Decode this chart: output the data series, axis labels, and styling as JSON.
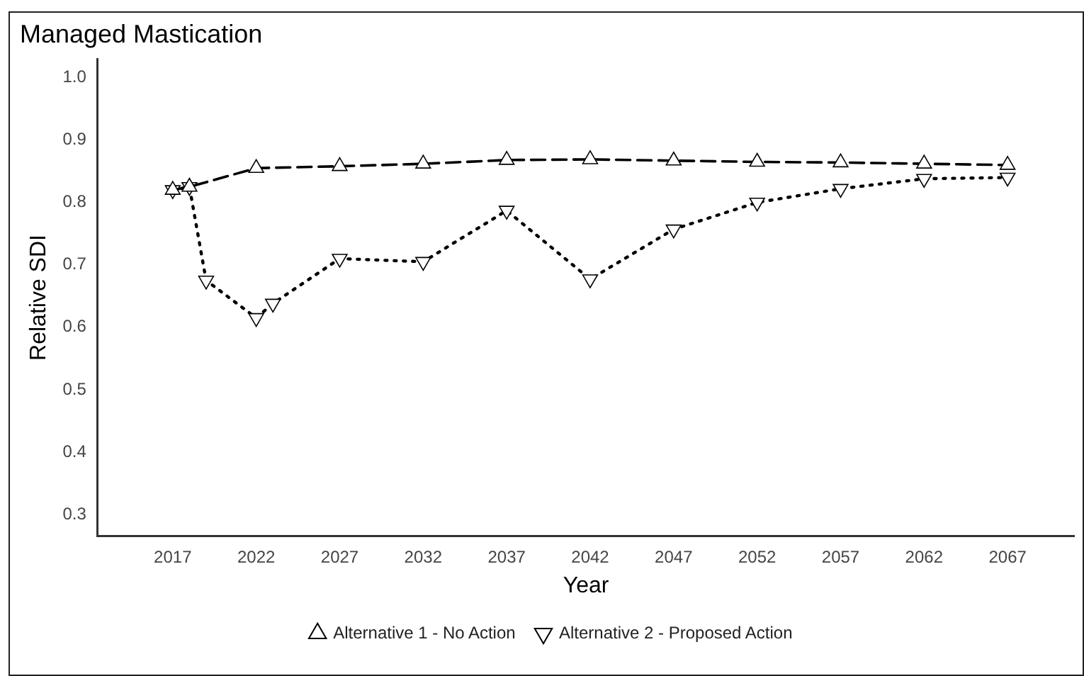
{
  "chart_data": {
    "type": "line",
    "title": "Managed Mastication",
    "xlabel": "Year",
    "ylabel": "Relative SDI",
    "xlim": [
      2012.5,
      2071
    ],
    "xticks": [
      2017,
      2022,
      2027,
      2032,
      2037,
      2042,
      2047,
      2052,
      2057,
      2062,
      2067
    ],
    "ylim": [
      0.265,
      1.03
    ],
    "yticks": [
      {
        "value": 0.3,
        "label": "0.3"
      },
      {
        "value": 0.4,
        "label": "0.4"
      },
      {
        "value": 0.5,
        "label": "0.5"
      },
      {
        "value": 0.6,
        "label": "0.6"
      },
      {
        "value": 0.7,
        "label": "0.7"
      },
      {
        "value": 0.8,
        "label": "0.8"
      },
      {
        "value": 0.9,
        "label": "0.9"
      },
      {
        "value": 1,
        "label": "1.0"
      }
    ],
    "grid": false,
    "legend": "bottom",
    "marker": "triangle",
    "series": [
      {
        "name": "Alternative 1 - No Action",
        "color": "#000000",
        "line_style": "dashed",
        "x": [
          2017,
          2018,
          2022,
          2027,
          2032,
          2037,
          2042,
          2047,
          2052,
          2057,
          2062,
          2067
        ],
        "values": [
          0.82,
          0.825,
          0.855,
          0.858,
          0.862,
          0.868,
          0.869,
          0.867,
          0.865,
          0.864,
          0.862,
          0.86
        ]
      },
      {
        "name": "Alternative 2 - Proposed Action",
        "color": "#000000",
        "line_style": "dotted",
        "x": [
          2017,
          2018,
          2019,
          2022,
          2023,
          2027,
          2032,
          2037,
          2042,
          2047,
          2052,
          2057,
          2062,
          2067
        ],
        "values": [
          0.82,
          0.825,
          0.675,
          0.615,
          0.638,
          0.71,
          0.705,
          0.787,
          0.677,
          0.757,
          0.8,
          0.822,
          0.838,
          0.84
        ]
      }
    ]
  }
}
